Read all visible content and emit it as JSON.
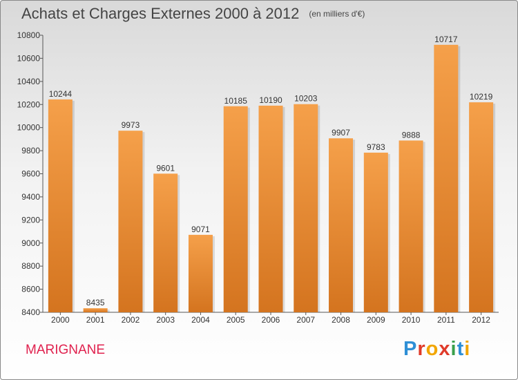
{
  "header": {
    "title": "Achats et Charges Externes 2000 à 2012",
    "unit_note": "(en milliers d'€)"
  },
  "footer": {
    "commune": "MARIGNANE",
    "brand_letters": [
      "P",
      "r",
      "o",
      "x",
      "i",
      "t",
      "i"
    ],
    "brand_colors": [
      "#2e8fd6",
      "#e03b2a",
      "#f2a600",
      "#e03b2a",
      "#3aa04b",
      "#2e8fd6",
      "#f2a600"
    ]
  },
  "colors": {
    "bar_light": "#f5a04a",
    "bar_dark": "#d4741f",
    "commune_text": "#e0214e"
  },
  "chart_data": {
    "type": "bar",
    "title": "Achats et Charges Externes 2000 à 2012",
    "categories": [
      "2000",
      "2001",
      "2002",
      "2003",
      "2004",
      "2005",
      "2006",
      "2007",
      "2008",
      "2009",
      "2010",
      "2011",
      "2012"
    ],
    "values": [
      10244,
      8435,
      9973,
      9601,
      9071,
      10185,
      10190,
      10203,
      9907,
      9783,
      9888,
      10717,
      10219
    ],
    "ylim": [
      8400,
      10800
    ],
    "yticks": [
      8400,
      8600,
      8800,
      9000,
      9200,
      9400,
      9600,
      9800,
      10000,
      10200,
      10400,
      10600,
      10800
    ],
    "grid": false,
    "data_labels": true
  }
}
